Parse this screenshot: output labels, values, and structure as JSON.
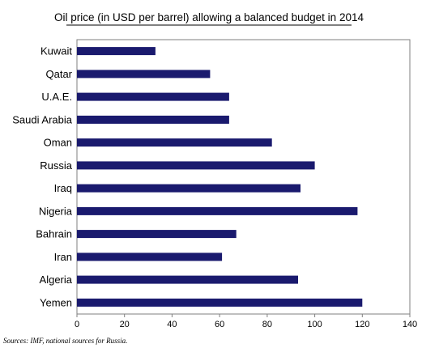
{
  "chart_data": {
    "type": "bar",
    "orientation": "horizontal",
    "title": "Oil price (in USD per barrel) allowing a balanced budget in 2014",
    "categories": [
      "Kuwait",
      "Qatar",
      "U.A.E.",
      "Saudi Arabia",
      "Oman",
      "Russia",
      "Iraq",
      "Nigeria",
      "Bahrain",
      "Iran",
      "Algeria",
      "Yemen"
    ],
    "values": [
      33,
      56,
      64,
      64,
      82,
      100,
      94,
      118,
      67,
      61,
      93,
      120
    ],
    "xlim": [
      0,
      140
    ],
    "xticks": [
      "0",
      "20",
      "40",
      "60",
      "80",
      "100",
      "120",
      "140"
    ],
    "grid": false,
    "bar_color": "#1a1a6e",
    "source": "Sources: IMF, national sources for Russia."
  }
}
